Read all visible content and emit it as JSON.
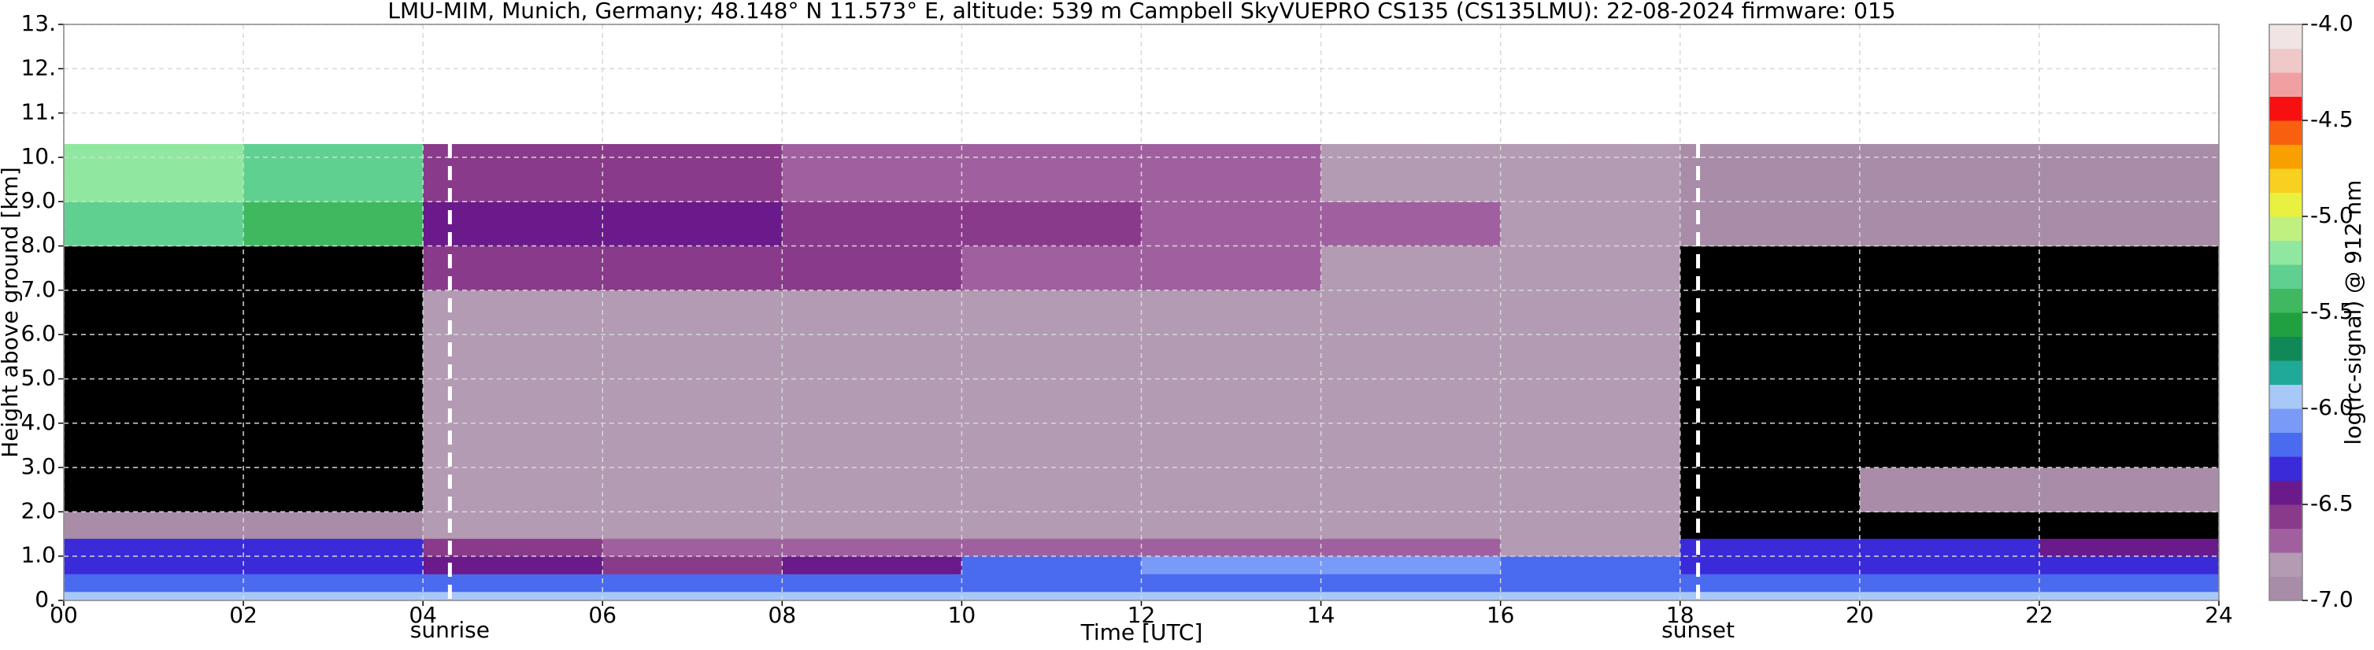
{
  "chart_data": {
    "type": "heatmap",
    "title": "LMU-MIM, Munich, Germany; 48.148° N 11.573° E, altitude: 539 m    Campbell SkyVUEPRO CS135 (CS135LMU): 22-08-2024    firmware: 015",
    "x_label": "Time [UTC]",
    "y_label": "Height above ground [km]",
    "colorbar_label": "log(rc-signal) @ 912 nm",
    "xlim": [
      0,
      24
    ],
    "ylim": [
      0,
      13
    ],
    "xticks": [
      {
        "value": 0,
        "label": "00"
      },
      {
        "value": 2,
        "label": "02"
      },
      {
        "value": 4,
        "label": "04"
      },
      {
        "value": 6,
        "label": "06"
      },
      {
        "value": 8,
        "label": "08"
      },
      {
        "value": 10,
        "label": "10"
      },
      {
        "value": 12,
        "label": "12"
      },
      {
        "value": 14,
        "label": "14"
      },
      {
        "value": 16,
        "label": "16"
      },
      {
        "value": 18,
        "label": "18"
      },
      {
        "value": 20,
        "label": "20"
      },
      {
        "value": 22,
        "label": "22"
      },
      {
        "value": 24,
        "label": "24"
      }
    ],
    "yticks": [
      {
        "value": 0,
        "label": "0."
      },
      {
        "value": 1,
        "label": "1.0"
      },
      {
        "value": 2,
        "label": "2.0"
      },
      {
        "value": 3,
        "label": "3.0"
      },
      {
        "value": 4,
        "label": "4.0"
      },
      {
        "value": 5,
        "label": "5.0"
      },
      {
        "value": 6,
        "label": "6.0"
      },
      {
        "value": 7,
        "label": "7.0"
      },
      {
        "value": 8,
        "label": "8.0"
      },
      {
        "value": 9,
        "label": "9.0"
      },
      {
        "value": 10,
        "label": "10."
      },
      {
        "value": 11,
        "label": "11."
      },
      {
        "value": 12,
        "label": "12."
      },
      {
        "value": 13,
        "label": "13."
      }
    ],
    "grid": true,
    "x_edges": [
      0,
      2,
      4,
      6,
      8,
      10,
      12,
      14,
      16,
      18,
      20,
      22,
      24
    ],
    "y_edges": [
      0,
      0.2,
      0.6,
      1.0,
      1.4,
      2,
      3,
      5,
      7,
      8,
      9,
      10.3
    ],
    "values": [
      [
        -5.9,
        -5.9,
        -5.9,
        -5.9,
        -5.9,
        -5.9,
        -5.9,
        -5.9,
        -5.9,
        -5.9,
        -5.9,
        -5.9
      ],
      [
        -6.2,
        -6.2,
        -6.2,
        -6.2,
        -6.2,
        -6.2,
        -6.2,
        -6.2,
        -6.2,
        -6.2,
        -6.2,
        -6.2
      ],
      [
        -6.3,
        -6.3,
        -6.5,
        -6.6,
        -6.5,
        -6.2,
        -6.1,
        -6.1,
        -6.2,
        -6.3,
        -6.3,
        -6.3
      ],
      [
        -6.3,
        -6.3,
        -6.6,
        -6.7,
        -6.7,
        -6.7,
        -6.7,
        -6.7,
        -6.8,
        -6.3,
        -6.3,
        -6.4
      ],
      [
        -6.9,
        -6.9,
        -6.8,
        -6.8,
        -6.8,
        -6.8,
        -6.8,
        -6.8,
        -6.8,
        -7.5,
        -7.5,
        -7.5
      ],
      [
        -7.5,
        -7.5,
        -6.8,
        -6.8,
        -6.8,
        -6.8,
        -6.8,
        -6.8,
        -6.8,
        -7.5,
        -6.9,
        -6.9
      ],
      [
        -7.5,
        -7.5,
        -6.8,
        -6.8,
        -6.8,
        -6.8,
        -6.8,
        -6.8,
        -6.8,
        -7.5,
        -7.5,
        -7.5
      ],
      [
        -7.5,
        -7.5,
        -6.8,
        -6.8,
        -6.8,
        -6.8,
        -6.8,
        -6.8,
        -6.8,
        -7.5,
        -7.5,
        -7.5
      ],
      [
        -7.5,
        -7.5,
        -6.6,
        -6.6,
        -6.6,
        -6.7,
        -6.7,
        -6.8,
        -6.8,
        -7.5,
        -7.5,
        -7.5
      ],
      [
        -5.3,
        -5.4,
        -6.5,
        -6.5,
        -6.6,
        -6.6,
        -6.7,
        -6.7,
        -6.8,
        -6.9,
        -6.9,
        -6.9
      ],
      [
        -5.2,
        -5.3,
        -6.6,
        -6.6,
        -6.7,
        -6.7,
        -6.7,
        -6.8,
        -6.8,
        -6.9,
        -6.9,
        -6.9
      ]
    ],
    "below_range_color": "#000000",
    "clim": [
      -7,
      -4
    ],
    "colormap": [
      "#a88ca8",
      "#b39bb3",
      "#a0609f",
      "#8a3a8a",
      "#6a1a8a",
      "#3a2ad8",
      "#4a6af0",
      "#7a9af8",
      "#a8c8f8",
      "#20a898",
      "#108858",
      "#20a040",
      "#40b860",
      "#60d090",
      "#90e8a0",
      "#c0f080",
      "#e8f040",
      "#f8d020",
      "#f8a000",
      "#f86010",
      "#f81010",
      "#f0a0a0",
      "#f0c8c8",
      "#f0e4e4"
    ],
    "colorbar_ticks": [
      {
        "value": -7,
        "label": "-7.0"
      },
      {
        "value": -6.5,
        "label": "-6.5"
      },
      {
        "value": -6,
        "label": "-6.0"
      },
      {
        "value": -5.5,
        "label": "-5.5"
      },
      {
        "value": -5,
        "label": "-5.0"
      },
      {
        "value": -4.5,
        "label": "-4.5"
      },
      {
        "value": -4,
        "label": "-4.0"
      }
    ],
    "markers": [
      {
        "x": 4.3,
        "label": "sunrise"
      },
      {
        "x": 18.2,
        "label": "sunset"
      }
    ]
  }
}
